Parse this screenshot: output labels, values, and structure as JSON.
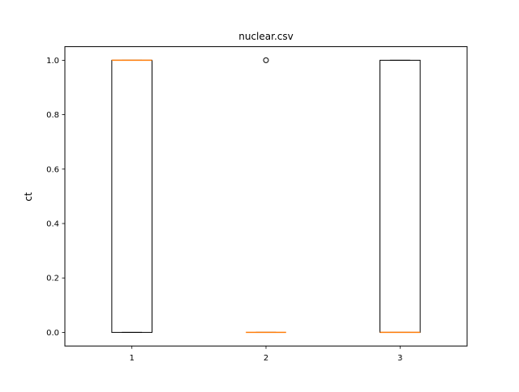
{
  "chart_data": {
    "type": "box",
    "title": "nuclear.csv",
    "xlabel": "",
    "ylabel": "ct",
    "categories": [
      "1",
      "2",
      "3"
    ],
    "xlim": [
      0.5,
      3.5
    ],
    "ylim": [
      -0.05,
      1.05
    ],
    "yticks": [
      0.0,
      0.2,
      0.4,
      0.6,
      0.8,
      1.0
    ],
    "ytick_labels": [
      "0.0",
      "0.2",
      "0.4",
      "0.6",
      "0.8",
      "1.0"
    ],
    "grid": false,
    "boxes": [
      {
        "category": "1",
        "whislo": 0,
        "q1": 0,
        "med": 1,
        "q3": 1,
        "whishi": 1,
        "fliers": []
      },
      {
        "category": "2",
        "whislo": 0,
        "q1": 0,
        "med": 0,
        "q3": 0,
        "whishi": 0,
        "fliers": [
          1
        ]
      },
      {
        "category": "3",
        "whislo": 0,
        "q1": 0,
        "med": 0,
        "q3": 1,
        "whishi": 1,
        "fliers": []
      }
    ],
    "colors": {
      "box": "#000000",
      "median": "#ff7f0e",
      "axes": "#000000"
    }
  }
}
